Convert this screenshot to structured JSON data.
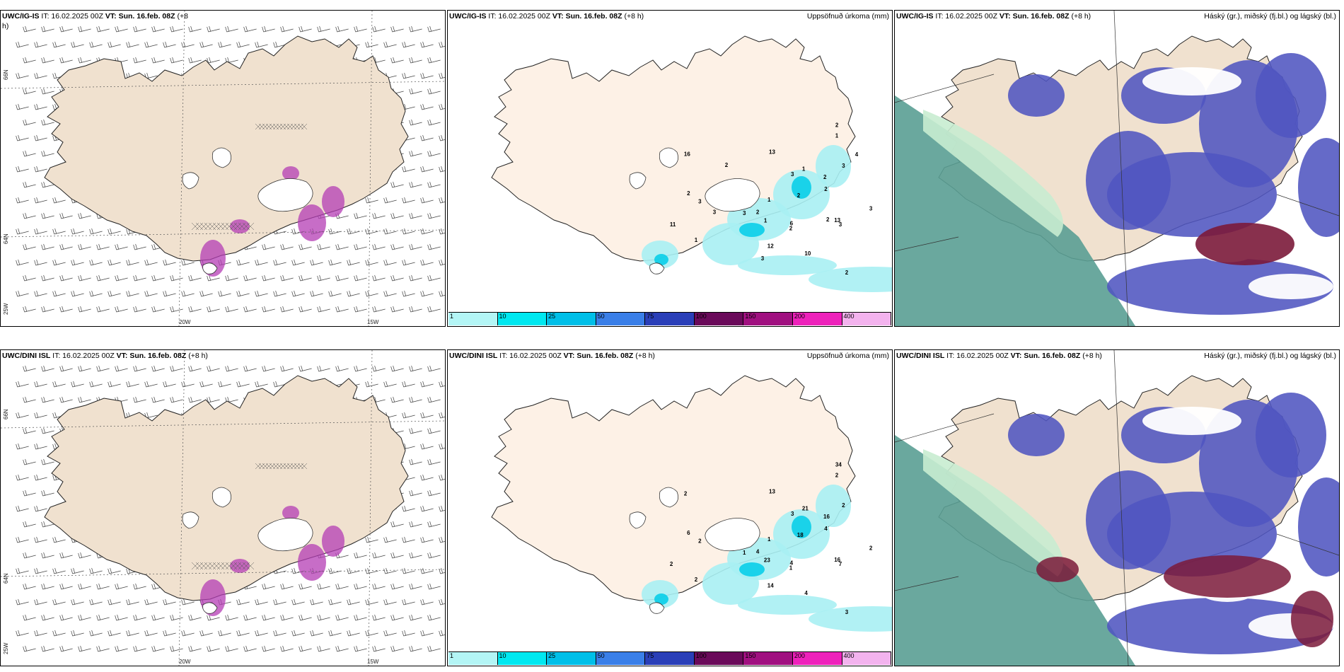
{
  "panels": {
    "wind_ig": {
      "model": "UWC/IG-IS",
      "it": "IT: 16.02.2025 00Z",
      "vt": "VT: Sun. 16.feb. 08Z",
      "lead": "(+8",
      "lead2": "h)"
    },
    "precip_ig": {
      "model": "UWC/IG-IS",
      "it": "IT: 16.02.2025 00Z",
      "vt": "VT: Sun. 16.feb. 08Z",
      "lead": "(+8 h)",
      "right": "Uppsöfnuð úrkoma (mm)"
    },
    "cloud_ig": {
      "model": "UWC/IG-IS",
      "it": "IT: 16.02.2025 00Z",
      "vt": "VT: Sun. 16.feb. 08Z",
      "lead": "(+8 h)",
      "right": "Háský (gr.), miðský (fj.bl.) og lágský (bl.)"
    },
    "wind_dini": {
      "model": "UWC/DINI ISL",
      "it": "IT: 16.02.2025 00Z",
      "vt": "VT: Sun. 16.feb. 08Z",
      "lead": "(+8 h)"
    },
    "precip_dini": {
      "model": "UWC/DINI ISL",
      "it": "IT: 16.02.2025 00Z",
      "vt": "VT: Sun. 16.feb. 08Z",
      "lead": "(+8 h)",
      "right": "Uppsöfnuð úrkoma (mm)"
    },
    "cloud_dini": {
      "model": "UWC/DINI ISL",
      "it": "IT: 16.02.2025 00Z",
      "vt": "VT: Sun. 16.feb. 08Z",
      "lead": "(+8 h)",
      "right": "Háský (gr.), miðský (fj.bl.) og lágský (bl.)"
    }
  },
  "axis_labels": {
    "lat66": "66N",
    "lat64": "64N",
    "lon20": "20W",
    "lon15": "15W",
    "lon25": "25W"
  },
  "colorbar": {
    "labels": [
      "1",
      "10",
      "25",
      "50",
      "75",
      "100",
      "150",
      "200",
      "400"
    ],
    "colors": [
      "#b3f5f5",
      "#00e8f0",
      "#00bfe8",
      "#3a7fe8",
      "#2a3fb8",
      "#6a0a5a",
      "#a01080",
      "#ee22bb",
      "#f3b3ee"
    ]
  },
  "precip_numbers": {
    "ig": [
      "1",
      "3",
      "3",
      "3",
      "2",
      "2",
      "12",
      "13",
      "13",
      "11",
      "1",
      "2",
      "1",
      "2",
      "1",
      "1",
      "6",
      "3",
      "3",
      "10",
      "16",
      "3",
      "1",
      "2",
      "2",
      "3",
      "2",
      "2",
      "2",
      "2",
      "3",
      "4",
      "3"
    ],
    "dini": [
      "1",
      "1",
      "3",
      "7",
      "6",
      "16",
      "14",
      "13",
      "16",
      "2",
      "2",
      "3",
      "3",
      "18",
      "23",
      "21",
      "4",
      "2",
      "2",
      "4",
      "2",
      "2",
      "2",
      "34",
      "4",
      "2",
      "4",
      "1"
    ]
  },
  "colors": {
    "land": "#f0e1cf",
    "land_light": "#fdf1e6",
    "magenta": "#b43cb4",
    "cloud_high": "#5a9f93",
    "cloud_mid": "#5055c0",
    "cloud_low": "#ffffff",
    "cloud_dark": "#7b1a3a"
  }
}
